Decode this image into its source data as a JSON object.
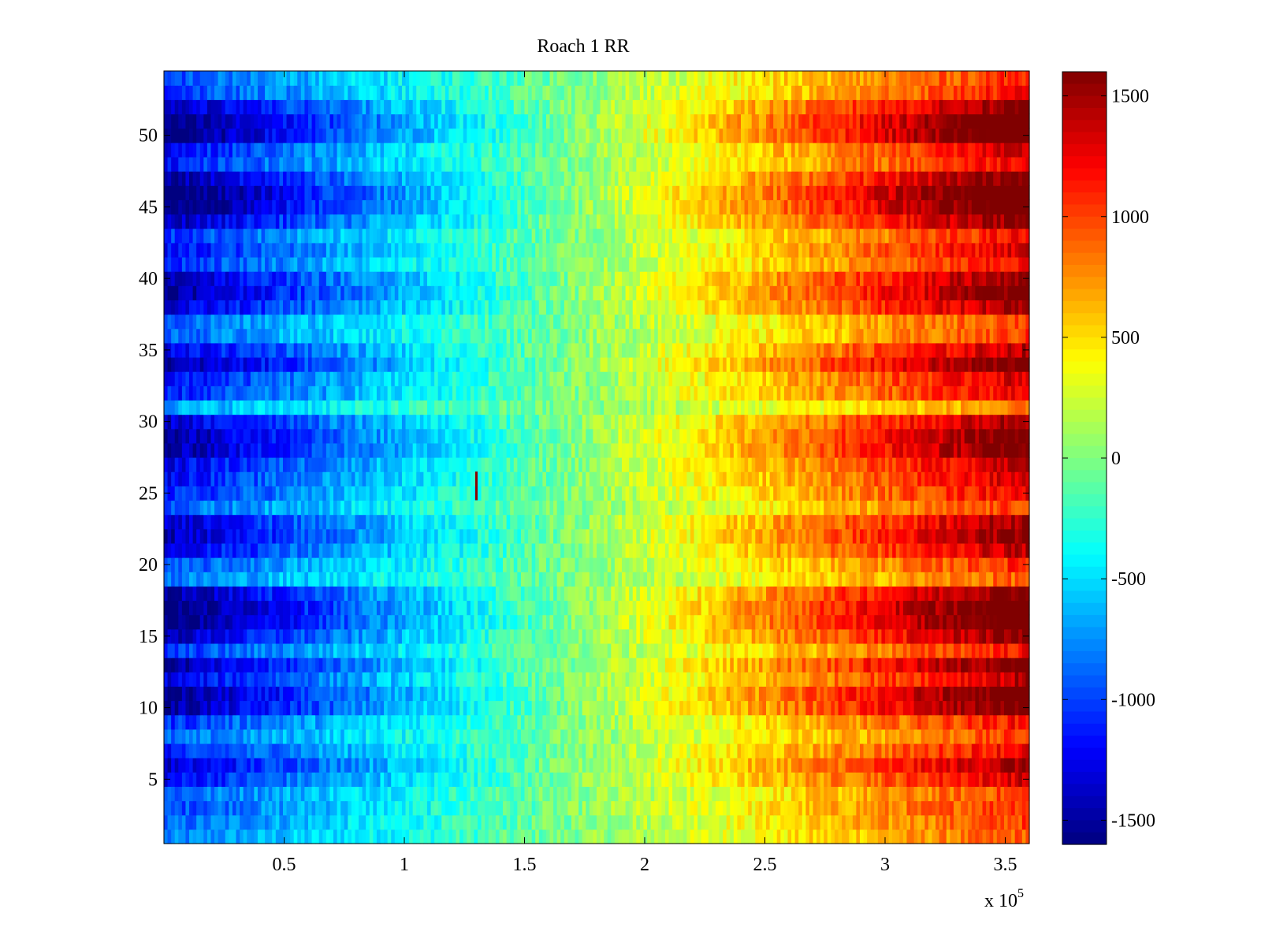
{
  "chart_data": {
    "type": "heatmap",
    "title": "Roach 1 RR",
    "xlabel": "",
    "ylabel": "",
    "x_multiplier_label": "x 10",
    "x_multiplier_exponent": "5",
    "xlim": [
      0,
      3.6
    ],
    "ylim": [
      0.5,
      54.5
    ],
    "x_ticks": [
      0.5,
      1,
      1.5,
      2,
      2.5,
      3,
      3.5
    ],
    "x_tick_labels": [
      "0.5",
      "1",
      "1.5",
      "2",
      "2.5",
      "3",
      "3.5"
    ],
    "y_ticks": [
      5,
      10,
      15,
      20,
      25,
      30,
      35,
      40,
      45,
      50
    ],
    "y_tick_labels": [
      "5",
      "10",
      "15",
      "20",
      "25",
      "30",
      "35",
      "40",
      "45",
      "50"
    ],
    "rows": 54,
    "colormap": "jet",
    "clim": [
      -1600,
      1600
    ],
    "colorbar": {
      "ticks": [
        -1500,
        -1000,
        -500,
        0,
        500,
        1000,
        1500
      ],
      "tick_labels": [
        "-1500",
        "-1000",
        "-500",
        "0",
        "500",
        "1000",
        "1500"
      ]
    },
    "value_model": {
      "description": "value ramps linearly from left to right; row amplitude varies by row",
      "center_x": 1.7,
      "row_amplitude": [
        0.55,
        0.6,
        0.65,
        0.6,
        0.8,
        0.9,
        0.75,
        0.6,
        0.7,
        1.0,
        1.05,
        0.85,
        1.0,
        0.7,
        0.95,
        1.1,
        1.1,
        1.0,
        0.55,
        0.65,
        0.85,
        0.95,
        0.9,
        0.6,
        0.75,
        0.8,
        0.85,
        1.0,
        1.0,
        0.9,
        0.45,
        0.75,
        0.8,
        1.0,
        0.85,
        0.6,
        0.6,
        0.9,
        1.0,
        0.95,
        0.7,
        0.8,
        0.7,
        0.95,
        1.1,
        1.15,
        1.0,
        0.75,
        0.8,
        1.1,
        1.1,
        0.95,
        0.7,
        0.65
      ],
      "slope_per_unit_x": 900,
      "noise": 180
    },
    "anomaly": {
      "x": 1.3,
      "y_from": 24.5,
      "y_to": 26.5,
      "value": 1500
    }
  }
}
